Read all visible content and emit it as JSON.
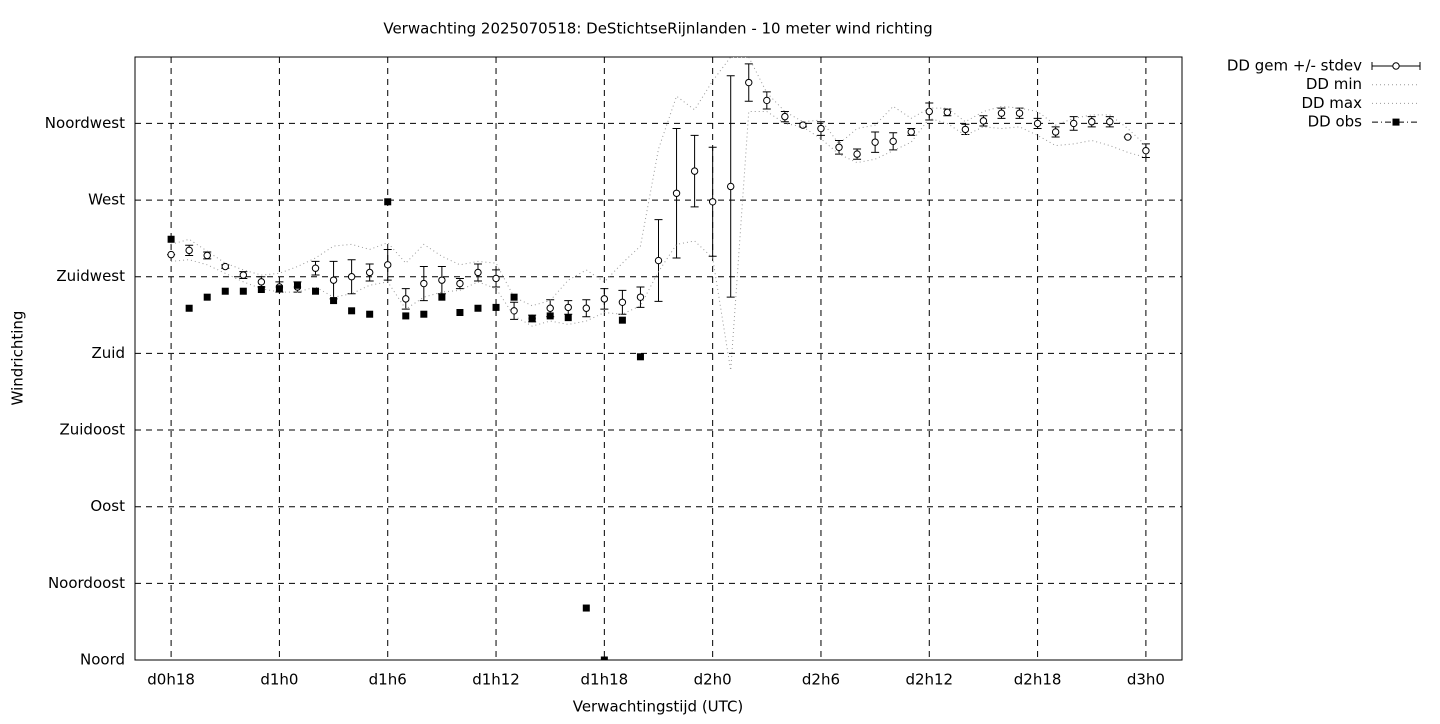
{
  "chart_data": {
    "type": "errorbar-line",
    "title": "Verwachting 2025070518: DeStichtseRijnlanden - 10 meter wind richting",
    "xlabel": "Verwachtingstijd (UTC)",
    "ylabel": "Windrichting",
    "x": [
      18,
      19,
      20,
      21,
      22,
      23,
      24,
      25,
      26,
      27,
      28,
      29,
      30,
      31,
      32,
      33,
      34,
      35,
      36,
      37,
      38,
      39,
      40,
      41,
      42,
      43,
      44,
      45,
      46,
      47,
      48,
      49,
      50,
      51,
      52,
      53,
      54,
      55,
      56,
      57,
      58,
      59,
      60,
      61,
      62,
      63,
      64,
      65,
      66,
      67,
      68,
      69,
      70,
      71,
      72
    ],
    "xlim": [
      16,
      74
    ],
    "xticks": [
      {
        "value": 18,
        "label": "d0h18"
      },
      {
        "value": 24,
        "label": "d1h0"
      },
      {
        "value": 30,
        "label": "d1h6"
      },
      {
        "value": 36,
        "label": "d1h12"
      },
      {
        "value": 42,
        "label": "d1h18"
      },
      {
        "value": 48,
        "label": "d2h0"
      },
      {
        "value": 54,
        "label": "d2h6"
      },
      {
        "value": 60,
        "label": "d2h12"
      },
      {
        "value": 66,
        "label": "d2h18"
      },
      {
        "value": 72,
        "label": "d3h0"
      }
    ],
    "ylim": [
      0,
      354
    ],
    "yticks": [
      {
        "value": 0,
        "label": "Noord"
      },
      {
        "value": 45,
        "label": "Noordoost"
      },
      {
        "value": 90,
        "label": "Oost"
      },
      {
        "value": 135,
        "label": "Zuidoost"
      },
      {
        "value": 180,
        "label": "Zuid"
      },
      {
        "value": 225,
        "label": "Zuidwest"
      },
      {
        "value": 270,
        "label": "West"
      },
      {
        "value": 315,
        "label": "Noordwest"
      }
    ],
    "grid": true,
    "legend": "outside-right",
    "series": [
      {
        "name": "DD gem +/- stdev",
        "style": "errorbar",
        "color": "#000000",
        "values": [
          238,
          240.5,
          237.5,
          231,
          226,
          222,
          219,
          219,
          230,
          223,
          225,
          227.5,
          232,
          212,
          221,
          223,
          221,
          227.5,
          224,
          205,
          200.5,
          206.5,
          207,
          206.5,
          212,
          210,
          213,
          234.5,
          274,
          287,
          269,
          278,
          339,
          328.5,
          319,
          314,
          312,
          301,
          297,
          304,
          304.5,
          310,
          322,
          321.5,
          311.5,
          316.5,
          321,
          321,
          315,
          310,
          315,
          316,
          316,
          307,
          299
        ],
        "errors": [
          0,
          3,
          2,
          1,
          2,
          3,
          3,
          3,
          4,
          11,
          10,
          5,
          9,
          6,
          10,
          8,
          3,
          5,
          5,
          5,
          2,
          5,
          4,
          5,
          6,
          7,
          6,
          24,
          38,
          21,
          32,
          65,
          11,
          5,
          3,
          1,
          4,
          4,
          3,
          6,
          5,
          2,
          5,
          2,
          3,
          3,
          3,
          3,
          3,
          3,
          4,
          3,
          3,
          0,
          4
        ]
      },
      {
        "name": "DD min",
        "style": "dotted",
        "color": "#999999",
        "values": [
          234,
          235,
          232,
          227,
          222,
          218,
          216,
          216,
          219,
          213,
          215,
          220,
          222,
          206,
          213,
          216,
          217,
          222,
          218,
          202,
          196,
          199,
          197,
          199,
          204,
          203,
          208,
          228,
          244,
          246,
          236,
          170,
          322,
          322,
          315,
          313,
          306,
          297,
          292,
          294,
          299,
          304,
          318,
          315,
          308,
          313,
          312,
          313,
          308,
          302,
          303,
          305,
          302,
          298,
          295
        ]
      },
      {
        "name": "DD max",
        "style": "dotted",
        "color": "#999999",
        "values": [
          244,
          247,
          240,
          233,
          229,
          226,
          227,
          231,
          236,
          243,
          244,
          241,
          245,
          233,
          244,
          237,
          232,
          234,
          233,
          213,
          208,
          211,
          223,
          229,
          222,
          233,
          243,
          300,
          331,
          323,
          340,
          354,
          354,
          333,
          322,
          316,
          317,
          303,
          312,
          314,
          325,
          318,
          324,
          324,
          316,
          322,
          325,
          324,
          322,
          314,
          318,
          320,
          320,
          312,
          302
        ]
      },
      {
        "name": "DD obs",
        "style": "square",
        "color": "#000000",
        "values": [
          247,
          206.5,
          213,
          216.5,
          216.5,
          217.5,
          218,
          220,
          216.5,
          211,
          205,
          203,
          269,
          202,
          203,
          213,
          204,
          206.5,
          207,
          213,
          200.5,
          202,
          201,
          30.5,
          0,
          199.5,
          178,
          null,
          null,
          null,
          null,
          null,
          null,
          null,
          null,
          null,
          null,
          null,
          null,
          null,
          null,
          null,
          null,
          null,
          null,
          null,
          null,
          null,
          null,
          null,
          null,
          null,
          null,
          null,
          null
        ]
      }
    ]
  }
}
